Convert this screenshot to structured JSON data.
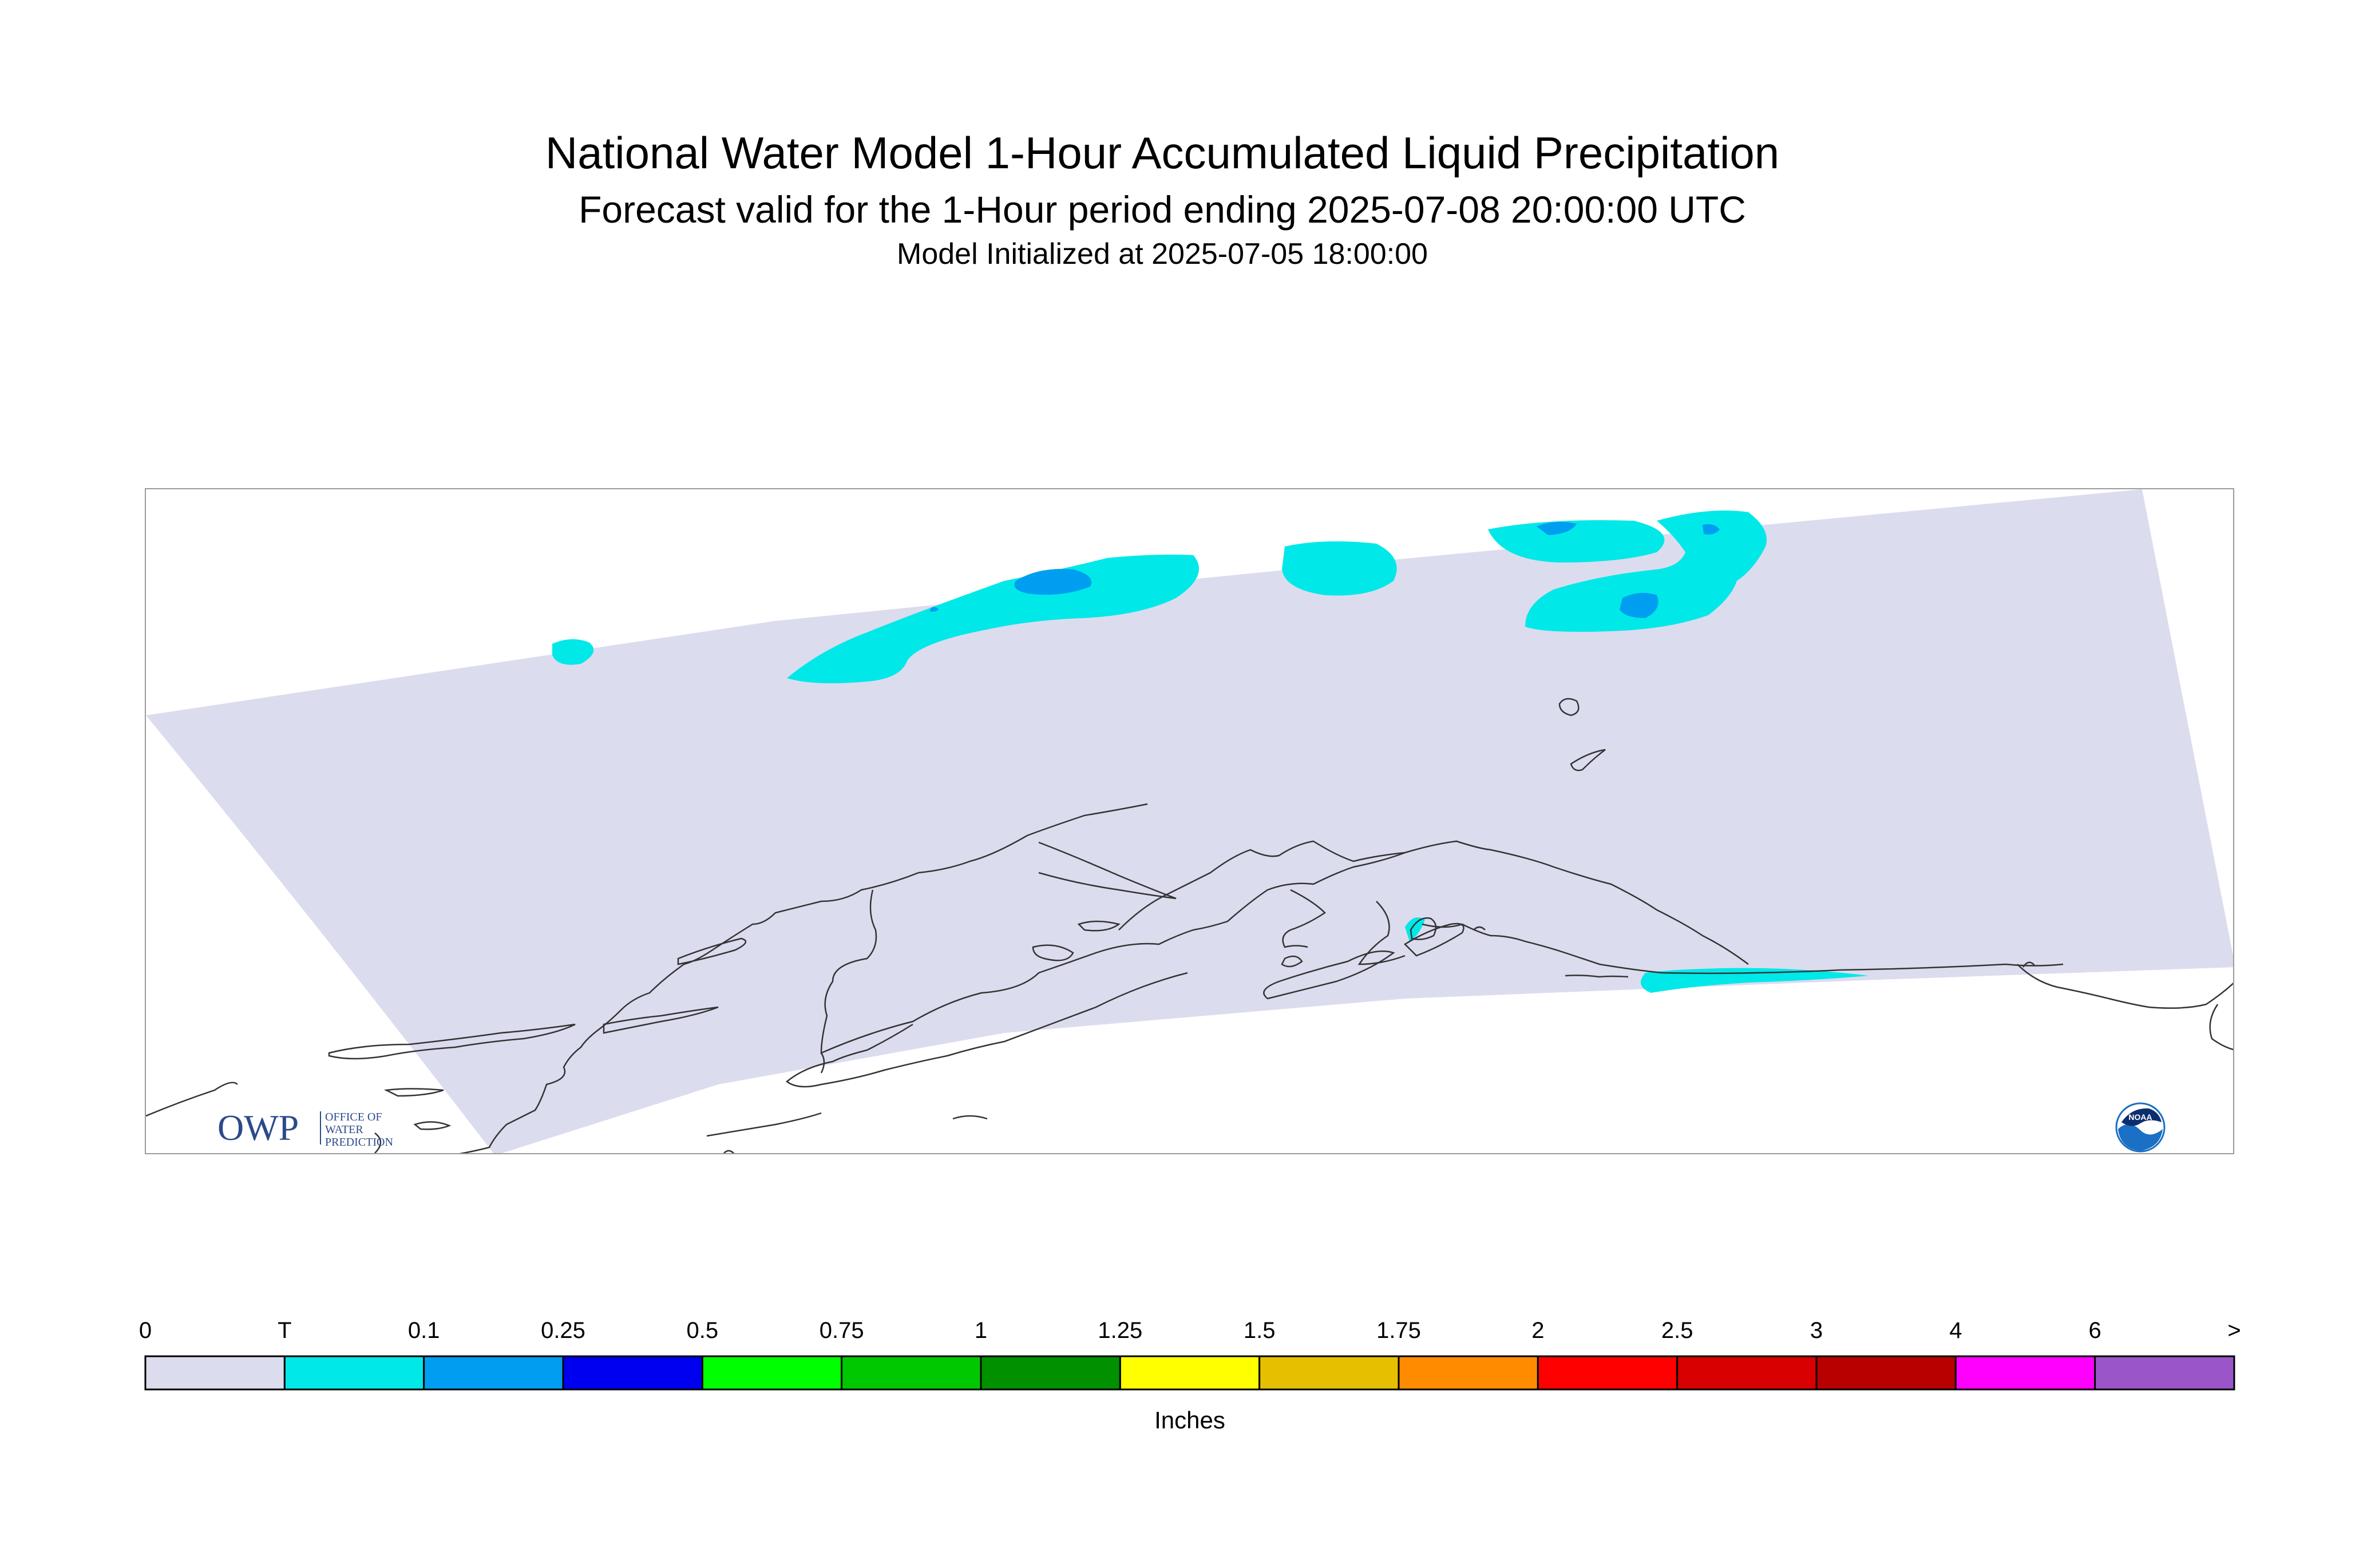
{
  "header": {
    "title": "National Water Model 1-Hour Accumulated Liquid Precipitation",
    "subtitle": "Forecast valid for the 1-Hour period ending 2025-07-08 20:00:00 UTC",
    "init_line": "Model Initialized at 2025-07-05 18:00:00"
  },
  "map": {
    "domain_fill_color": "#dcdcef",
    "coastline_color": "#333333",
    "precip_colors": {
      "trace": "#00e8e8",
      "light": "#009ef0"
    },
    "logos": {
      "owp": {
        "letters": "OWP",
        "text_lines": [
          "OFFICE OF",
          "WATER",
          "PREDICTION"
        ],
        "color": "#2a4a8a"
      },
      "noaa": {
        "text": "NOAA",
        "color": "#1b6fc4"
      }
    }
  },
  "legend": {
    "units": "Inches",
    "tick_labels": [
      "0",
      "T",
      "0.1",
      "0.25",
      "0.5",
      "0.75",
      "1",
      "1.25",
      "1.5",
      "1.75",
      "2",
      "2.5",
      "3",
      "4",
      "6",
      ">"
    ],
    "bins": [
      {
        "color": "#dcdcef"
      },
      {
        "color": "#00e8e8"
      },
      {
        "color": "#009ef0"
      },
      {
        "color": "#0000f0"
      },
      {
        "color": "#00ff00"
      },
      {
        "color": "#00c800"
      },
      {
        "color": "#009000"
      },
      {
        "color": "#ffff00"
      },
      {
        "color": "#e6c000"
      },
      {
        "color": "#ff8c00"
      },
      {
        "color": "#ff0000"
      },
      {
        "color": "#d80000"
      },
      {
        "color": "#b80000"
      },
      {
        "color": "#ff00ff"
      },
      {
        "color": "#9a55c8"
      }
    ]
  }
}
